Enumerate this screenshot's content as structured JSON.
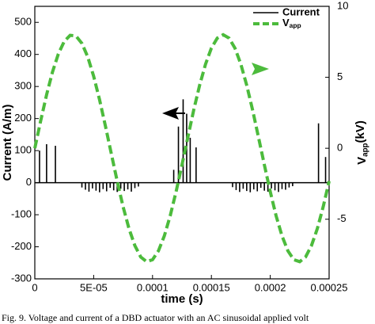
{
  "chart_data": {
    "type": "line",
    "xlabel": "time (s)",
    "ylabel": "Current (A/m)",
    "y2label": "Vapp(kV)",
    "caption": "Fig. 9.  Voltage and current of a DBD actuator with an AC sinusoidal applied volt",
    "xlim": [
      0,
      0.00025
    ],
    "xticks": [
      0,
      {
        "value": 5e-05,
        "label": "5E-05"
      },
      0.0001,
      0.00015,
      0.0002,
      0.00025
    ],
    "ylim": [
      -300,
      550
    ],
    "yticks": [
      -300,
      -200,
      -100,
      0,
      100,
      200,
      300,
      400,
      500
    ],
    "y2lim": [
      -9.2,
      10
    ],
    "y2ticks": [
      -5,
      0,
      5,
      10
    ],
    "legend": "top-right",
    "series": [
      {
        "name": "Current",
        "color": "#000000",
        "style": "stem",
        "x": [
          4e-06,
          1e-05,
          1.75e-05,
          4e-05,
          4.3e-05,
          4.6e-05,
          4.9e-05,
          5.2e-05,
          5.5e-05,
          5.8e-05,
          6.1e-05,
          6.4e-05,
          6.7e-05,
          7e-05,
          7.3e-05,
          7.6e-05,
          7.9e-05,
          8.2e-05,
          8.5e-05,
          8.8e-05,
          0.000118,
          0.000122,
          0.000126,
          0.000129,
          0.000132,
          0.000137,
          0.000168,
          0.000171,
          0.000174,
          0.000177,
          0.00018,
          0.000183,
          0.000186,
          0.000189,
          0.000192,
          0.000195,
          0.000198,
          0.000201,
          0.000204,
          0.000207,
          0.00021,
          0.000213,
          0.000216,
          0.000219,
          0.000241,
          0.000247
        ],
        "values": [
          100,
          120,
          115,
          -15,
          -22,
          -28,
          -18,
          -25,
          -30,
          -20,
          -27,
          -16,
          -24,
          -29,
          -19,
          -26,
          -21,
          -28,
          -17,
          -12,
          40,
          175,
          260,
          215,
          140,
          110,
          -14,
          -23,
          -29,
          -19,
          -26,
          -30,
          -21,
          -27,
          -16,
          -25,
          -28,
          -18,
          -24,
          -29,
          -20,
          -22,
          -15,
          -11,
          185,
          80
        ]
      },
      {
        "name": "Vapp",
        "color": "#4cbb3c",
        "style": "dashed",
        "axis": "y2",
        "x": [
          0,
          5e-06,
          1e-05,
          1.5e-05,
          2e-05,
          2.5e-05,
          3e-05,
          3.5e-05,
          4e-05,
          4.5e-05,
          5e-05,
          5.5e-05,
          6e-05,
          6.5e-05,
          7e-05,
          7.5e-05,
          8e-05,
          8.5e-05,
          9e-05,
          9.5e-05,
          0.0001,
          0.000105,
          0.00011,
          0.000115,
          0.00012,
          0.000125,
          0.00013,
          0.000135,
          0.00014,
          0.000145,
          0.00015,
          0.000155,
          0.00016,
          0.000165,
          0.00017,
          0.000175,
          0.00018,
          0.000185,
          0.00019,
          0.000195,
          0.0002,
          0.000205,
          0.00021,
          0.000215,
          0.00022,
          0.000225,
          0.00023,
          0.000235,
          0.00024,
          0.000245,
          0.00025
        ],
        "values": [
          0,
          1.94,
          3.77,
          5.37,
          6.65,
          7.53,
          7.96,
          7.91,
          7.39,
          6.43,
          5.07,
          3.42,
          1.56,
          -0.39,
          -2.32,
          -4.12,
          -5.66,
          -6.86,
          -7.66,
          -7.99,
          -7.85,
          -7.23,
          -6.18,
          -4.76,
          -3.06,
          -1.17,
          0.78,
          2.7,
          4.44,
          5.92,
          7.06,
          7.76,
          8,
          7.76,
          7.06,
          5.93,
          4.44,
          2.7,
          0.78,
          -1.17,
          -3.06,
          -4.77,
          -6.18,
          -7.23,
          -7.85,
          -7.99,
          -7.66,
          -6.86,
          -5.66,
          -4.11,
          -2.32
        ]
      }
    ]
  }
}
